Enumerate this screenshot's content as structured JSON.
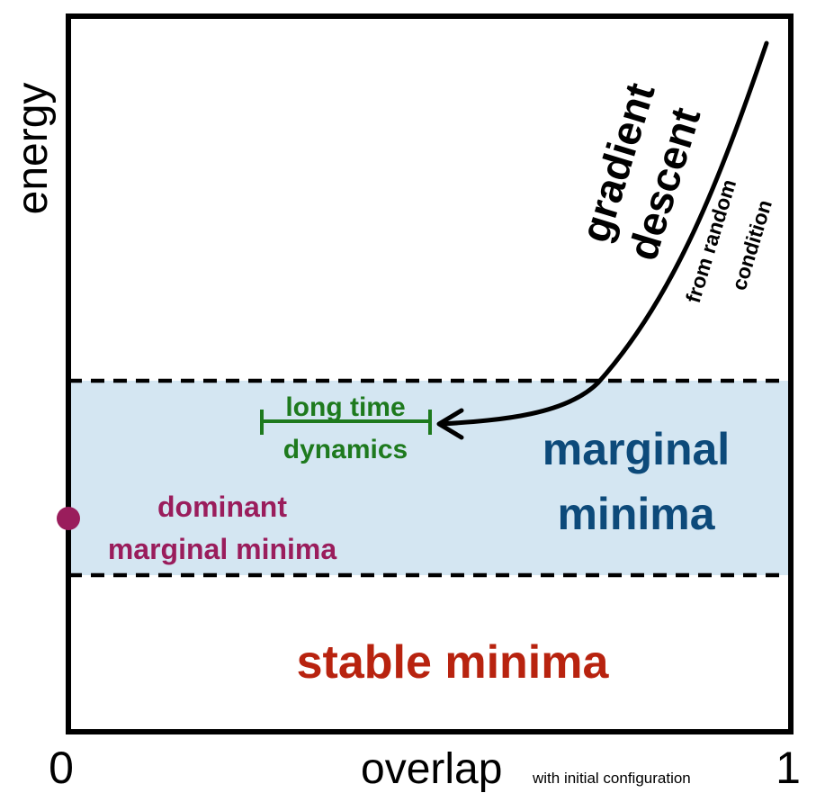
{
  "axes": {
    "y_label": "energy",
    "x_label": "overlap",
    "x_label_suffix": "with initial configuration",
    "x_tick_left": "0",
    "x_tick_right": "1"
  },
  "regions": {
    "marginal": {
      "line1": "marginal",
      "line2": "minima"
    },
    "stable": {
      "label": "stable minima"
    }
  },
  "annotations": {
    "gradient_descent": {
      "line1": "gradient",
      "line2": "descent",
      "sub1": "from random",
      "sub2": "condition"
    },
    "long_time": {
      "line1": "long time",
      "line2": "dynamics"
    },
    "dominant": {
      "line1": "dominant",
      "line2": "marginal minima"
    }
  },
  "colors": {
    "band_fill": "#d4e6f2",
    "marginal_text": "#0d4a7a",
    "stable_text": "#b8230f",
    "long_time_text": "#1e7a1e",
    "dominant_text": "#9a1d5c",
    "frame": "#000000"
  }
}
